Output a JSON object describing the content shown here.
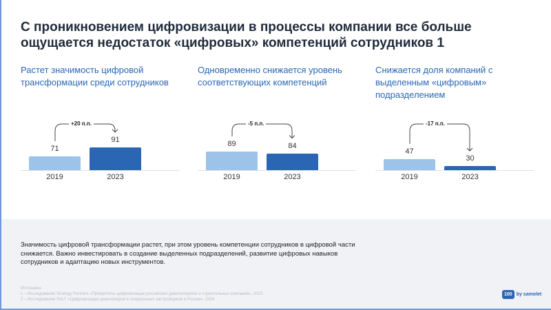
{
  "title": "С проникновением цифровизации в процессы компании все больше ощущается недостаток «цифровых» компетенций сотрудников 1",
  "colors": {
    "accent": "#2a66b3",
    "bar_light": "#9dc3e8",
    "bar_dark": "#2a66b3"
  },
  "panels": [
    {
      "subtitle": "Растет значимость цифровой трансформации среди сотрудников",
      "delta": "+20 п.п.",
      "years": [
        "2019",
        "2023"
      ],
      "values": [
        71,
        91
      ]
    },
    {
      "subtitle": "Одновременно снижается уровень соответствующих компетенций",
      "delta": "-5 п.п.",
      "years": [
        "2019",
        "2023"
      ],
      "values": [
        89,
        84
      ]
    },
    {
      "subtitle": "Снижается доля компаний с выделенным «цифровым» подразделением",
      "delta": "-17 п.п.",
      "years": [
        "2019",
        "2023"
      ],
      "values": [
        47,
        30
      ]
    }
  ],
  "conclusion": "Значимость цифровой трансформации растет, при этом уровень компетенции сотрудников в цифровой части снижается. Важно инвестировать в создание выделенных подразделений, развитие цифровых навыков сотрудников и адаптацию новых инструментов.",
  "sources": {
    "label": "Источники:",
    "items": [
      "1 – Исследование Strategy Partners «Приоритеты цифровизации российских девелоперских и строительных компаний», 2023",
      "2 – Исследование SALT «Цифровизация девелоперов и генеральных застройщиков в России», 2024"
    ]
  },
  "logo": {
    "badge": "100",
    "text": "by samolet"
  }
}
